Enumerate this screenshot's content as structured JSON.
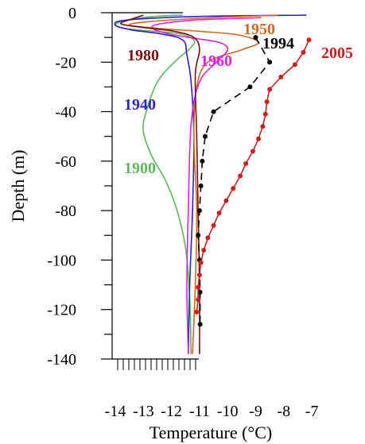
{
  "chart_data": {
    "type": "line",
    "xlabel": "Temperature (°C)",
    "ylabel": "Depth (m)",
    "xlim": [
      -14.5,
      -7
    ],
    "ylim": [
      -140,
      0
    ],
    "xticks": [
      -14,
      -13,
      -12,
      -11,
      -10,
      -9,
      -8,
      -7
    ],
    "xtick_labels": [
      "-14",
      "-13",
      "-12",
      "-11",
      "-10",
      "-9",
      "-8",
      "-7"
    ],
    "yticks": [
      0,
      -20,
      -40,
      -60,
      -80,
      -100,
      -120,
      -140
    ],
    "ytick_labels": [
      "0",
      "-20",
      "-40",
      "-60",
      "-80",
      "-100",
      "-120",
      "-140"
    ],
    "grid": false,
    "legend": "inline labels",
    "series": [
      {
        "name": "1900",
        "color": "#5cb85c",
        "marker": "none",
        "points": [
          [
            -11.6,
            -1
          ],
          [
            -12.6,
            -1.5
          ],
          [
            -13.6,
            -3
          ],
          [
            -14.0,
            -5
          ],
          [
            -13.6,
            -6.5
          ],
          [
            -12.6,
            -7.5
          ],
          [
            -11.7,
            -8.5
          ],
          [
            -11.2,
            -11
          ],
          [
            -11.3,
            -14
          ],
          [
            -11.9,
            -20
          ],
          [
            -12.5,
            -28
          ],
          [
            -12.9,
            -40
          ],
          [
            -13.0,
            -48
          ],
          [
            -12.7,
            -58
          ],
          [
            -12.2,
            -68
          ],
          [
            -11.8,
            -80
          ],
          [
            -11.5,
            -95
          ],
          [
            -11.35,
            -115
          ],
          [
            -11.3,
            -138
          ]
        ]
      },
      {
        "name": "1940",
        "color": "#2a1fd6",
        "marker": "none",
        "points": [
          [
            -7.2,
            -1
          ],
          [
            -11.0,
            -1.5
          ],
          [
            -13.6,
            -3
          ],
          [
            -14.0,
            -5
          ],
          [
            -13.4,
            -7
          ],
          [
            -12.4,
            -8.5
          ],
          [
            -11.6,
            -11
          ],
          [
            -11.45,
            -17
          ],
          [
            -11.3,
            -28
          ],
          [
            -11.2,
            -50
          ],
          [
            -11.25,
            -80
          ],
          [
            -11.35,
            -110
          ],
          [
            -11.4,
            -138
          ]
        ]
      },
      {
        "name": "1950",
        "color": "#d2691e",
        "marker": "none",
        "points": [
          [
            -8.2,
            -1
          ],
          [
            -10.5,
            -2
          ],
          [
            -12.7,
            -3.5
          ],
          [
            -13.5,
            -5
          ],
          [
            -12.3,
            -6.5
          ],
          [
            -11.0,
            -7.5
          ],
          [
            -9.6,
            -9
          ],
          [
            -8.9,
            -12
          ],
          [
            -9.5,
            -15
          ],
          [
            -10.7,
            -20
          ],
          [
            -11.1,
            -30
          ],
          [
            -11.2,
            -50
          ],
          [
            -11.1,
            -80
          ],
          [
            -11.15,
            -110
          ],
          [
            -11.25,
            -138
          ]
        ]
      },
      {
        "name": "1960",
        "color": "#e020e0",
        "marker": "none",
        "points": [
          [
            -8.8,
            -2
          ],
          [
            -11.2,
            -3
          ],
          [
            -12.4,
            -4.5
          ],
          [
            -12.7,
            -6
          ],
          [
            -12.3,
            -8
          ],
          [
            -11.4,
            -10
          ],
          [
            -10.3,
            -12
          ],
          [
            -10.0,
            -15
          ],
          [
            -10.4,
            -20
          ],
          [
            -11.0,
            -28
          ],
          [
            -11.3,
            -45
          ],
          [
            -11.4,
            -80
          ],
          [
            -11.45,
            -110
          ],
          [
            -11.4,
            -138
          ]
        ]
      },
      {
        "name": "1980",
        "color": "#7a1010",
        "marker": "none",
        "points": [
          [
            -13.0,
            -1
          ],
          [
            -13.4,
            -2.5
          ],
          [
            -13.8,
            -4.5
          ],
          [
            -13.0,
            -6
          ],
          [
            -11.9,
            -7.5
          ],
          [
            -11.2,
            -10
          ],
          [
            -11.0,
            -15
          ],
          [
            -11.15,
            -25
          ],
          [
            -11.1,
            -50
          ],
          [
            -11.05,
            -80
          ],
          [
            -11.0,
            -110
          ],
          [
            -11.0,
            -138
          ]
        ]
      },
      {
        "name": "1994",
        "color": "#000000",
        "marker": "circle",
        "dashed": true,
        "points": [
          [
            -9.0,
            -10
          ],
          [
            -8.5,
            -20
          ],
          [
            -9.2,
            -30
          ],
          [
            -10.5,
            -40
          ],
          [
            -10.8,
            -50
          ],
          [
            -10.9,
            -60
          ],
          [
            -10.95,
            -70
          ],
          [
            -11.0,
            -80
          ],
          [
            -11.05,
            -90
          ],
          [
            -11.0,
            -100
          ],
          [
            -10.98,
            -113
          ],
          [
            -10.98,
            -126
          ]
        ]
      },
      {
        "name": "2005",
        "color": "#cc2020",
        "marker": "circle",
        "dashed": false,
        "points": [
          [
            -7.1,
            -11
          ],
          [
            -7.3,
            -16
          ],
          [
            -7.6,
            -21
          ],
          [
            -8.1,
            -26
          ],
          [
            -8.5,
            -31
          ],
          [
            -8.6,
            -36
          ],
          [
            -8.65,
            -41
          ],
          [
            -8.75,
            -46
          ],
          [
            -8.9,
            -51
          ],
          [
            -9.1,
            -56
          ],
          [
            -9.35,
            -61
          ],
          [
            -9.55,
            -66
          ],
          [
            -9.8,
            -71
          ],
          [
            -10.05,
            -76
          ],
          [
            -10.3,
            -81
          ],
          [
            -10.5,
            -86
          ],
          [
            -10.7,
            -91
          ],
          [
            -10.85,
            -96
          ],
          [
            -10.95,
            -101
          ],
          [
            -11.0,
            -106
          ],
          [
            -11.05,
            -111
          ],
          [
            -11.05,
            -116
          ],
          [
            -11.1,
            -121
          ]
        ]
      }
    ]
  }
}
